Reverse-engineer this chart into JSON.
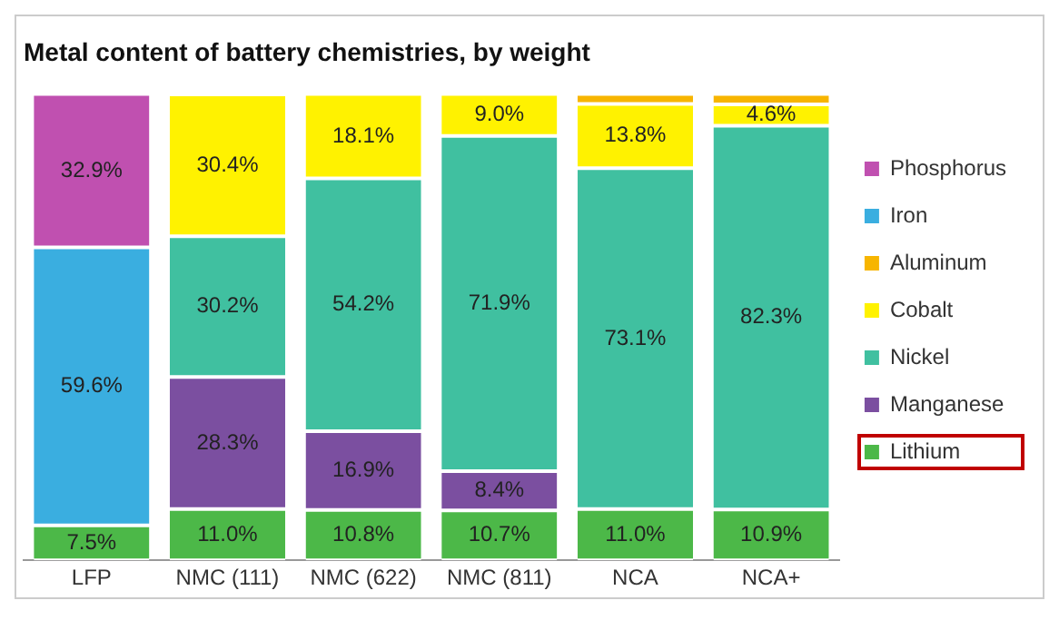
{
  "chart_data": {
    "type": "bar",
    "title": "Metal content of battery chemistries, by weight",
    "stacked": true,
    "categories": [
      "LFP",
      "NMC (111)",
      "NMC (622)",
      "NMC (811)",
      "NCA",
      "NCA+"
    ],
    "legend": "right",
    "grid": false,
    "tick_labels": "x",
    "series": [
      {
        "name": "Lithium",
        "color": "#4cb848",
        "values": [
          7.5,
          11.0,
          10.8,
          10.7,
          11.0,
          10.9
        ],
        "value_labels": [
          "7.5%",
          "11.0%",
          "10.8%",
          "10.7%",
          "11.0%",
          "10.9%"
        ]
      },
      {
        "name": "Manganese",
        "color": "#7b4fa0",
        "values": [
          null,
          28.3,
          16.9,
          8.4,
          null,
          null
        ],
        "value_labels": [
          null,
          "28.3%",
          "16.9%",
          "8.4%",
          null,
          null
        ]
      },
      {
        "name": "Nickel",
        "color": "#40c0a0",
        "values": [
          null,
          30.2,
          54.2,
          71.9,
          73.1,
          82.3
        ],
        "value_labels": [
          null,
          "30.2%",
          "54.2%",
          "71.9%",
          "73.1%",
          "82.3%"
        ]
      },
      {
        "name": "Cobalt",
        "color": "#fff200",
        "values": [
          null,
          30.4,
          18.1,
          9.0,
          13.8,
          4.6
        ],
        "value_labels": [
          null,
          "30.4%",
          "18.1%",
          "9.0%",
          "13.8%",
          "4.6%"
        ]
      },
      {
        "name": "Aluminum",
        "color": "#f7b500",
        "values": [
          null,
          null,
          null,
          null,
          2.1,
          2.2
        ],
        "value_labels": [
          null,
          null,
          null,
          null,
          null,
          null
        ]
      },
      {
        "name": "Iron",
        "color": "#3aaee0",
        "values": [
          59.6,
          null,
          null,
          null,
          null,
          null
        ],
        "value_labels": [
          "59.6%",
          null,
          null,
          null,
          null,
          null
        ]
      },
      {
        "name": "Phosphorus",
        "color": "#c050b0",
        "values": [
          32.9,
          null,
          null,
          null,
          null,
          null
        ],
        "value_labels": [
          "32.9%",
          null,
          null,
          null,
          null,
          null
        ]
      }
    ]
  }
}
